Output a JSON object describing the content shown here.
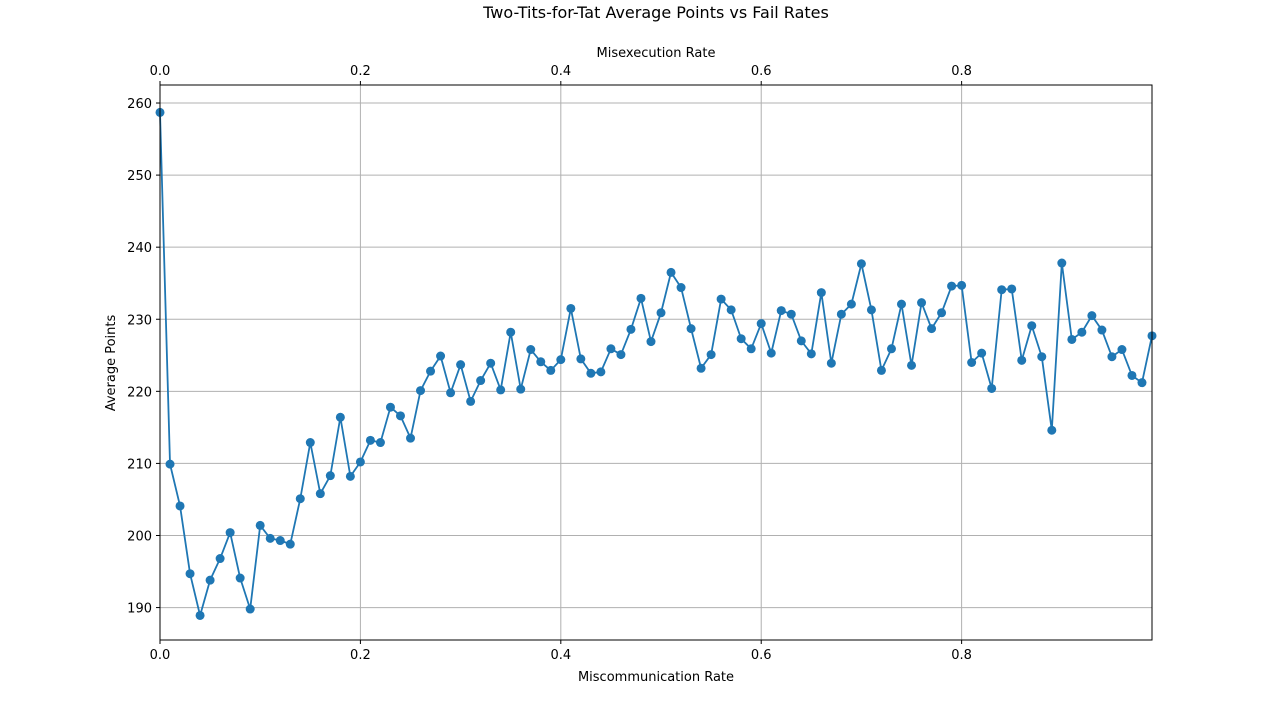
{
  "chart_data": {
    "type": "line",
    "title": "Two-Tits-for-Tat Average Points vs Fail Rates",
    "xlabel": "Miscommunication Rate",
    "x2label": "Misexecution Rate",
    "ylabel": "Average Points",
    "xlim": [
      0,
      0.99
    ],
    "ylim": [
      185.5,
      262.5
    ],
    "x_ticks": [
      "0.0",
      "0.2",
      "0.4",
      "0.6",
      "0.8"
    ],
    "x_tick_values": [
      0,
      0.2,
      0.4,
      0.6,
      0.8
    ],
    "x2_ticks": [
      "0.0",
      "0.2",
      "0.4",
      "0.6",
      "0.8"
    ],
    "x2_tick_values": [
      0,
      0.2,
      0.4,
      0.6,
      0.8
    ],
    "y_ticks": [
      "190",
      "200",
      "210",
      "220",
      "230",
      "240",
      "250",
      "260"
    ],
    "y_tick_values": [
      190,
      200,
      210,
      220,
      230,
      240,
      250,
      260
    ],
    "grid": true,
    "marker": "circle",
    "color": "#1f77b4",
    "series": [
      {
        "x_start": 0,
        "x_step": 0.01,
        "values": [
          258.7,
          209.9,
          204.1,
          194.7,
          188.9,
          193.8,
          196.8,
          200.4,
          194.1,
          189.8,
          201.4,
          199.6,
          199.3,
          198.8,
          205.1,
          212.9,
          205.8,
          208.3,
          216.4,
          208.2,
          210.2,
          213.2,
          212.9,
          217.8,
          216.6,
          213.5,
          220.1,
          222.8,
          224.9,
          219.8,
          223.7,
          218.6,
          221.5,
          223.9,
          220.2,
          228.2,
          220.3,
          225.8,
          224.1,
          222.9,
          224.4,
          231.5,
          224.5,
          222.5,
          222.7,
          225.9,
          225.1,
          228.6,
          232.9,
          226.9,
          230.9,
          236.5,
          234.4,
          228.7,
          223.2,
          225.1,
          232.8,
          231.3,
          227.3,
          225.9,
          229.4,
          225.3,
          231.2,
          230.7,
          227.0,
          225.2,
          233.7,
          223.9,
          230.7,
          232.1,
          237.7,
          231.3,
          222.9,
          225.9,
          232.1,
          223.6,
          232.3,
          228.7,
          230.9,
          234.6,
          234.7,
          224.0,
          225.3,
          220.4,
          234.1,
          234.2,
          224.3,
          229.1,
          224.8,
          214.6,
          237.8,
          227.2,
          228.2,
          230.5,
          228.5,
          224.8,
          225.8,
          222.2,
          221.2,
          227.7
        ]
      }
    ]
  }
}
